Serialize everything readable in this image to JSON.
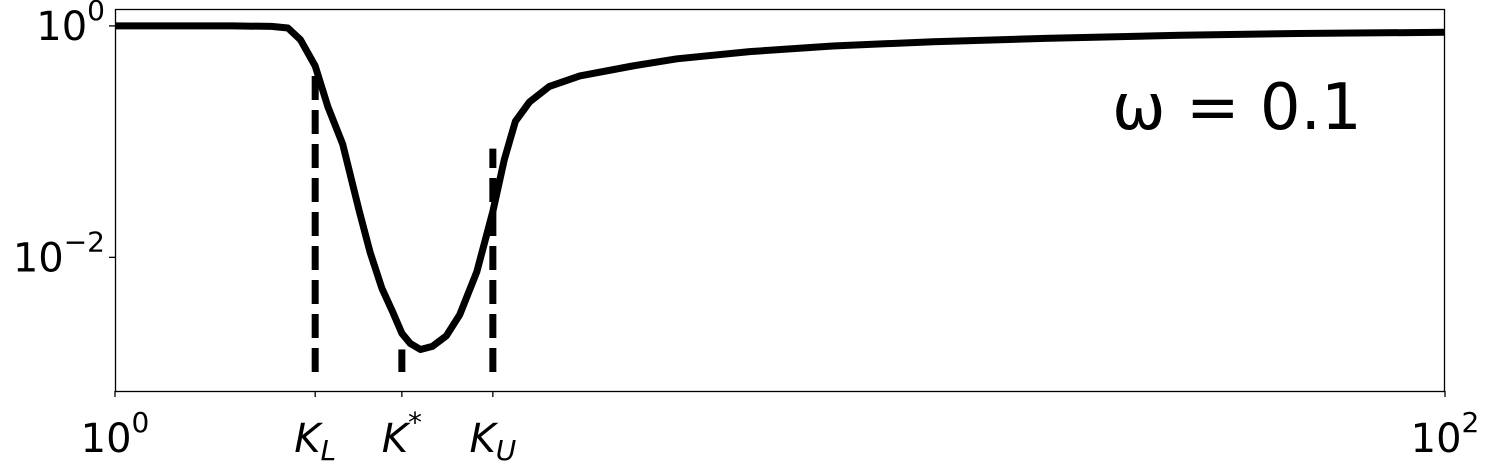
{
  "chart_data": {
    "type": "line",
    "title": "",
    "xlabel": "",
    "ylabel": "",
    "x_scale": "log",
    "y_scale": "log",
    "xlim": [
      1,
      100
    ],
    "ylim": [
      0.0007,
      1.4
    ],
    "grid": false,
    "legend": "none",
    "x_ticks": [
      {
        "value": 1,
        "base": "10",
        "exp": "0"
      },
      {
        "value": 2.0,
        "label": "K",
        "sub": "L"
      },
      {
        "value": 2.7,
        "label": "K",
        "sup": "*"
      },
      {
        "value": 3.7,
        "label": "K",
        "sub": "U"
      },
      {
        "value": 100,
        "base": "10",
        "exp": "2"
      }
    ],
    "y_ticks": [
      {
        "value": 1,
        "base": "10",
        "exp": "0"
      },
      {
        "value": 0.01,
        "base": "10",
        "exp": "−2"
      }
    ],
    "annotation": {
      "text": "ω = 0.1",
      "x": 30,
      "y": 0.2
    },
    "series": [
      {
        "color": "#000000",
        "style": "solid",
        "x": [
          1,
          1.25,
          1.5,
          1.72,
          1.82,
          1.9,
          2.0,
          2.09,
          2.2,
          2.33,
          2.42,
          2.52,
          2.62,
          2.7,
          2.78,
          2.88,
          3.0,
          3.15,
          3.3,
          3.5,
          3.7,
          3.85,
          4.0,
          4.2,
          4.5,
          5,
          6,
          7,
          9,
          12,
          17,
          25,
          40,
          60,
          100
        ],
        "y": [
          1,
          1,
          1,
          0.99,
          0.96,
          0.76,
          0.45,
          0.2,
          0.095,
          0.025,
          0.011,
          0.0054,
          0.0033,
          0.0022,
          0.0018,
          0.0016,
          0.0017,
          0.0021,
          0.0032,
          0.0075,
          0.025,
          0.07,
          0.15,
          0.22,
          0.3,
          0.37,
          0.45,
          0.52,
          0.6,
          0.67,
          0.73,
          0.78,
          0.83,
          0.86,
          0.88
        ]
      }
    ],
    "vlines": [
      {
        "x": 2.0,
        "y_top": 0.4,
        "style": "dashed"
      },
      {
        "x": 2.7,
        "y_top": 0.0016,
        "style": "solid"
      },
      {
        "x": 3.7,
        "y_top": 0.087,
        "style": "dashed"
      }
    ]
  }
}
